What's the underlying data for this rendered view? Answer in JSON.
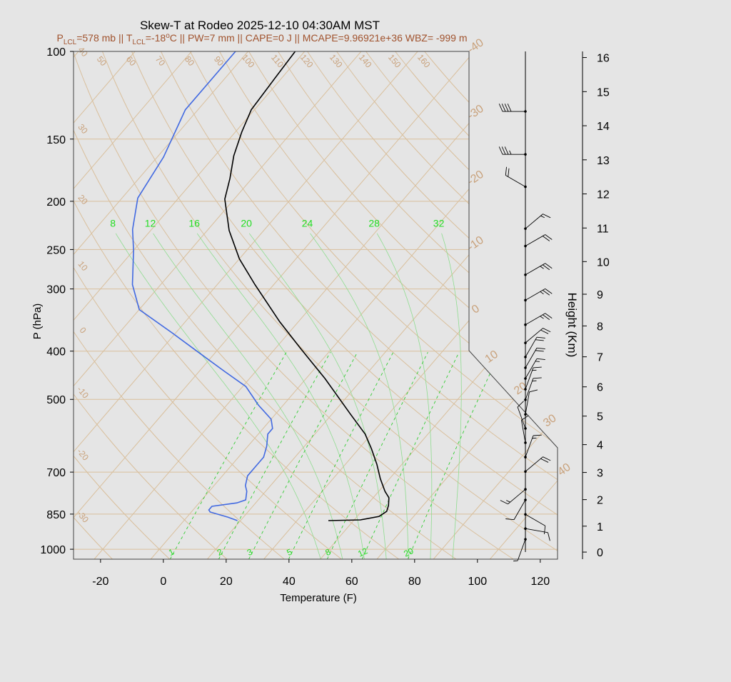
{
  "chart_data": {
    "type": "skew-t",
    "title": "Skew-T at Rodeo 2025-12-10 04:30AM MST",
    "subtitle": [
      "P",
      "LCL",
      "=578 mb || T",
      "LCL",
      "=-18",
      "o",
      "C || PW=7 mm || CAPE=0 J || MCAPE=9.96921e+36 WBZ= -999 m"
    ],
    "xlabel": "Temperature (F)",
    "ylabel": "P (hPa)",
    "y2label": "Height (Km)",
    "xlim": [
      -28.6,
      125.5
    ],
    "xticks": [
      -20,
      0,
      20,
      40,
      60,
      80,
      100,
      120
    ],
    "ylim": [
      1047,
      100
    ],
    "yscale": "log",
    "yticks": [
      100,
      150,
      200,
      250,
      300,
      400,
      500,
      700,
      850,
      1000
    ],
    "y2ticks": [
      0,
      1,
      2,
      3,
      4,
      5,
      6,
      7,
      8,
      9,
      10,
      11,
      12,
      13,
      14,
      15,
      16
    ],
    "grid": true,
    "isotherms_c": [
      -110,
      -100,
      -90,
      -80,
      -70,
      -60,
      -50,
      -40,
      -30,
      -20,
      -10,
      0,
      10,
      20,
      30,
      40
    ],
    "dry_adiabats_c": [
      -30,
      -20,
      -10,
      0,
      10,
      20,
      30,
      40,
      50,
      60,
      70,
      80,
      90,
      100,
      110,
      120,
      130,
      140,
      150,
      160
    ],
    "moist_adiabats_c": [
      8,
      12,
      16,
      20,
      24,
      28,
      32
    ],
    "mixing_ratios": [
      1,
      2,
      3,
      5,
      8,
      12,
      20
    ],
    "series": [
      {
        "color": "#000000",
        "pressure": [
          876,
          873,
          859,
          839,
          817,
          788,
          765,
          721,
          675,
          628,
          587,
          536,
          454,
          395,
          349,
          294,
          261,
          229,
          198,
          180,
          162,
          145,
          131,
          115,
          100
        ],
        "values": [
          42,
          52,
          57,
          58,
          57,
          55,
          52,
          47,
          42,
          36,
          30,
          20,
          2,
          -14,
          -28,
          -46,
          -58,
          -69,
          -79,
          -83,
          -88,
          -92,
          -95,
          -96,
          -97
        ]
      },
      {
        "color": "#4169e1",
        "pressure": [
          876,
          862,
          842,
          834,
          820,
          807,
          796,
          765,
          745,
          712,
          679,
          653,
          621,
          587,
          572,
          548,
          513,
          471,
          439,
          406,
          368,
          330,
          294,
          251,
          228,
          197,
          163,
          131,
          100
        ],
        "values": [
          13,
          9,
          2,
          1,
          1,
          8,
          10,
          8,
          6,
          4,
          4,
          4,
          2,
          -1,
          -1,
          -4,
          -12,
          -21,
          -32,
          -44,
          -59,
          -76,
          -85,
          -94,
          -100,
          -107,
          -110,
          -116,
          -116
        ]
      }
    ],
    "wind": {
      "pressure": [
        132,
        161,
        187,
        227,
        246,
        281,
        316,
        354,
        385,
        411,
        432,
        454,
        477,
        501,
        536,
        572,
        611,
        653,
        698,
        758,
        796,
        851,
        909,
        955
      ],
      "direction": [
        270,
        270,
        300,
        50,
        60,
        60,
        60,
        60,
        50,
        30,
        30,
        30,
        20,
        20,
        10,
        340,
        350,
        20,
        50,
        230,
        210,
        120,
        100,
        200
      ],
      "speed": [
        40,
        35,
        20,
        15,
        20,
        25,
        25,
        25,
        20,
        20,
        20,
        15,
        15,
        15,
        10,
        10,
        10,
        15,
        20,
        15,
        10,
        10,
        10,
        5
      ]
    }
  }
}
